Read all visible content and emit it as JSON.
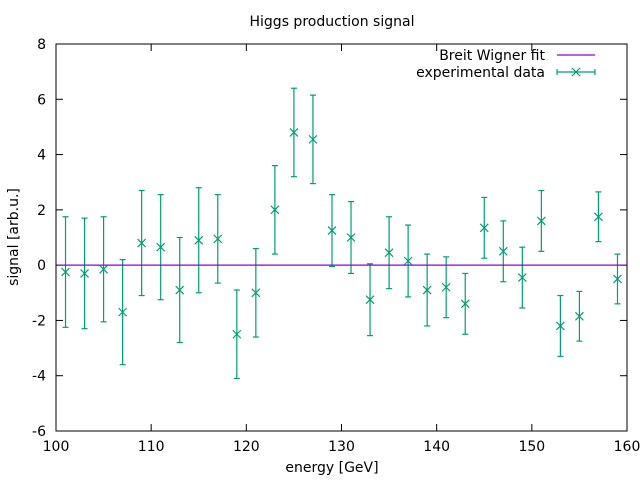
{
  "chart_data": {
    "type": "scatter",
    "title": "Higgs production signal",
    "xlabel": "energy [GeV]",
    "ylabel": "signal [arb.u.]",
    "xlim": [
      100,
      160
    ],
    "ylim": [
      -6,
      8
    ],
    "xticks": [
      100,
      110,
      120,
      130,
      140,
      150,
      160
    ],
    "yticks": [
      -6,
      -4,
      -2,
      0,
      2,
      4,
      6,
      8
    ],
    "grid": false,
    "legend_position": "top-right",
    "series": [
      {
        "name": "Breit Wigner fit",
        "kind": "line",
        "color": "#9400d3",
        "x": [
          100,
          160
        ],
        "y": [
          0,
          0
        ]
      },
      {
        "name": "experimental data",
        "kind": "errorbar",
        "color": "#009e73",
        "marker": "x",
        "x": [
          101,
          103,
          105,
          107,
          109,
          111,
          113,
          115,
          117,
          119,
          121,
          123,
          125,
          127,
          129,
          131,
          133,
          135,
          137,
          139,
          141,
          143,
          145,
          147,
          149,
          151,
          153,
          155,
          157,
          159
        ],
        "y": [
          -0.25,
          -0.3,
          -0.15,
          -1.7,
          0.8,
          0.65,
          -0.9,
          0.9,
          0.95,
          -2.5,
          -1.0,
          2.0,
          4.8,
          4.55,
          1.25,
          1.0,
          -1.25,
          0.45,
          0.15,
          -0.9,
          -0.8,
          -1.4,
          1.35,
          0.5,
          -0.45,
          1.6,
          -2.2,
          -1.85,
          1.75,
          -0.5
        ],
        "yerr": [
          2.0,
          2.0,
          1.9,
          1.9,
          1.9,
          1.9,
          1.9,
          1.9,
          1.6,
          1.6,
          1.6,
          1.6,
          1.6,
          1.6,
          1.3,
          1.3,
          1.3,
          1.3,
          1.3,
          1.3,
          1.1,
          1.1,
          1.1,
          1.1,
          1.1,
          1.1,
          1.1,
          0.9,
          0.9,
          0.9
        ]
      }
    ]
  }
}
